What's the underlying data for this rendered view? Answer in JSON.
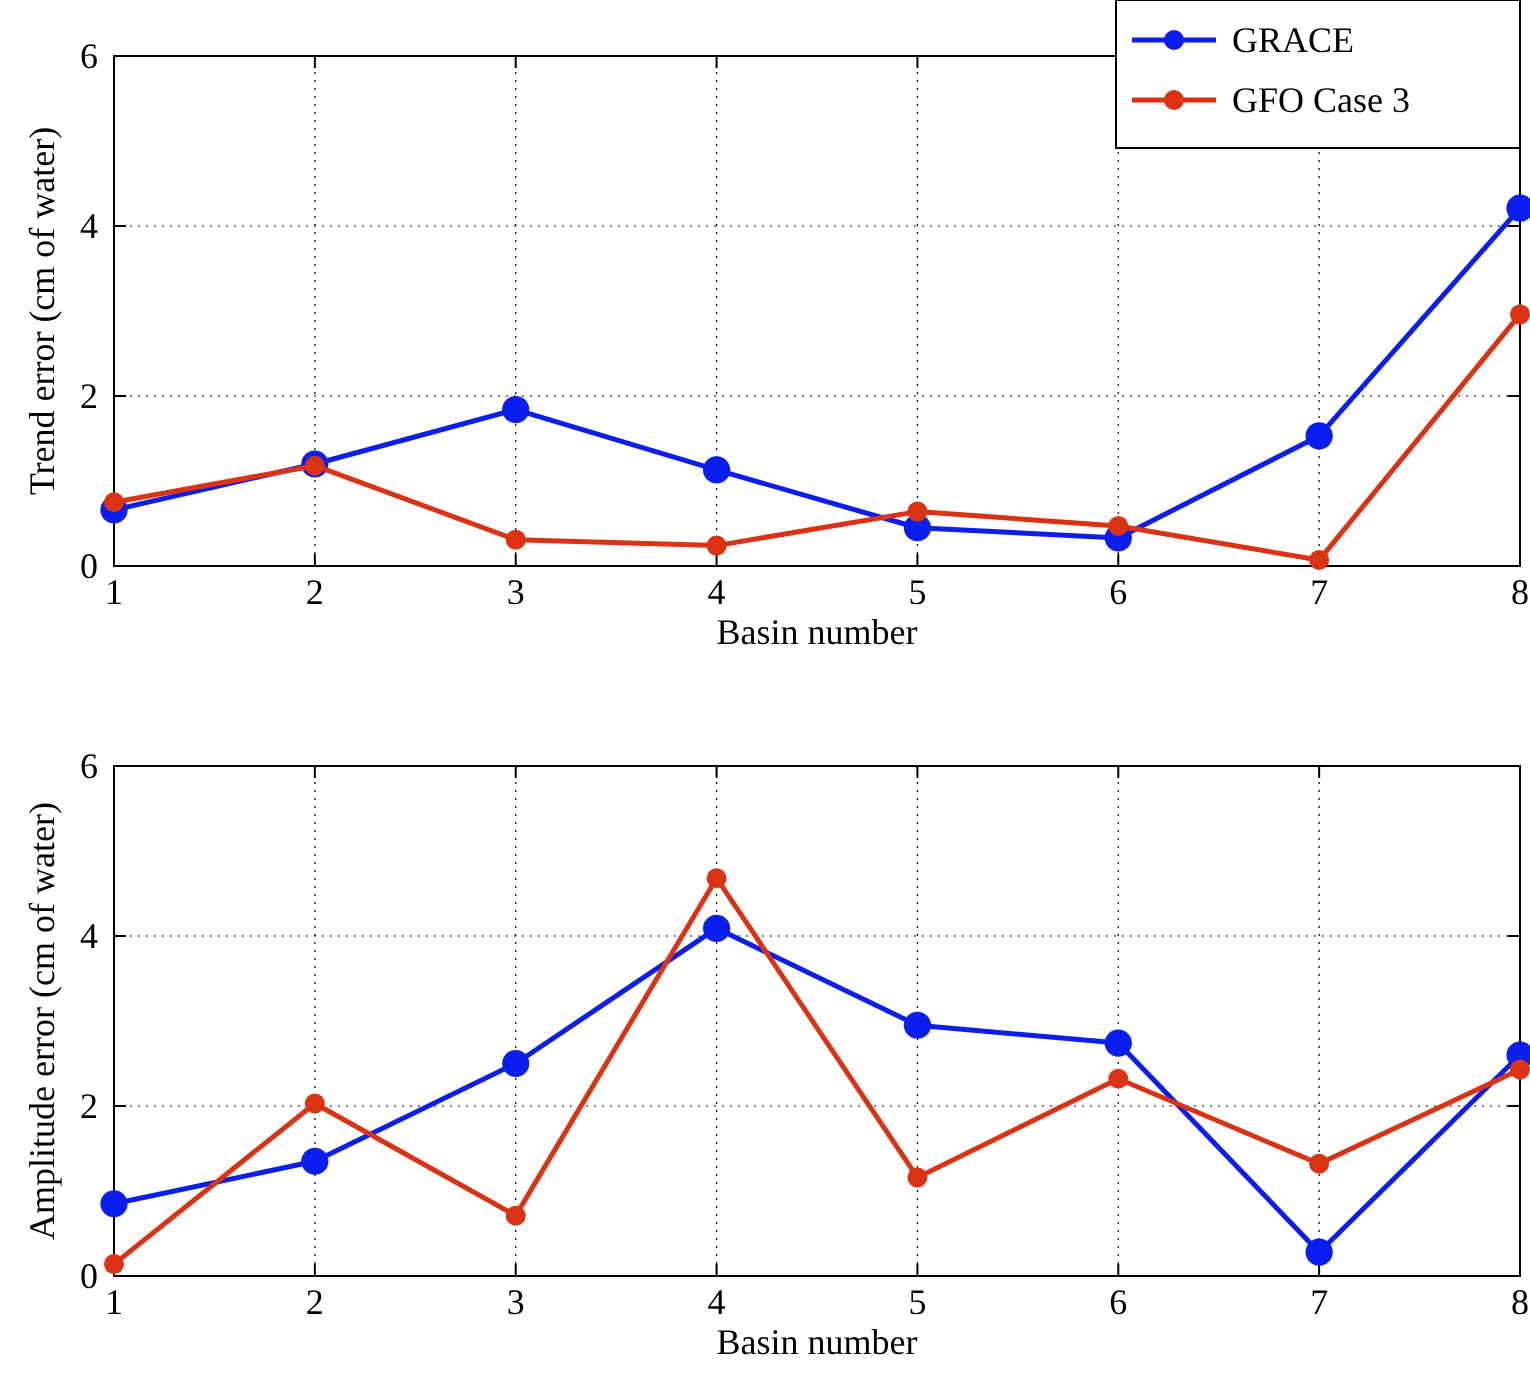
{
  "chart_data": [
    {
      "type": "line",
      "xlabel": "Basin number",
      "ylabel": "Trend error (cm of water)",
      "x": [
        1,
        2,
        3,
        4,
        5,
        6,
        7,
        8
      ],
      "xlim": [
        1,
        8
      ],
      "xticks": [
        1,
        2,
        3,
        4,
        5,
        6,
        7,
        8
      ],
      "ylim": [
        0,
        6
      ],
      "yticks": [
        0,
        2,
        4,
        6
      ],
      "grid": true,
      "legend": "top right",
      "marker": "circle",
      "line_style": "solid",
      "series": [
        {
          "name": "GRACE",
          "color": "#0b1ef0",
          "values": [
            0.66,
            1.2,
            1.84,
            1.13,
            0.45,
            0.33,
            1.53,
            4.21
          ]
        },
        {
          "name": "GFO Case 3",
          "color": "#dc3214",
          "values": [
            0.75,
            1.18,
            0.31,
            0.24,
            0.64,
            0.47,
            0.07,
            2.96
          ]
        }
      ]
    },
    {
      "type": "line",
      "xlabel": "Basin number",
      "ylabel": "Amplitude error (cm of water)",
      "x": [
        1,
        2,
        3,
        4,
        5,
        6,
        7,
        8
      ],
      "xlim": [
        1,
        8
      ],
      "xticks": [
        1,
        2,
        3,
        4,
        5,
        6,
        7,
        8
      ],
      "ylim": [
        0,
        6
      ],
      "yticks": [
        0,
        2,
        4,
        6
      ],
      "grid": true,
      "marker": "circle",
      "line_style": "solid",
      "series": [
        {
          "color": "#0b1ef0",
          "values": [
            0.85,
            1.35,
            2.5,
            4.09,
            2.95,
            2.74,
            0.28,
            2.6
          ]
        },
        {
          "color": "#dc3214",
          "values": [
            0.14,
            2.03,
            0.71,
            4.68,
            1.16,
            2.32,
            1.32,
            2.43
          ]
        }
      ]
    }
  ]
}
